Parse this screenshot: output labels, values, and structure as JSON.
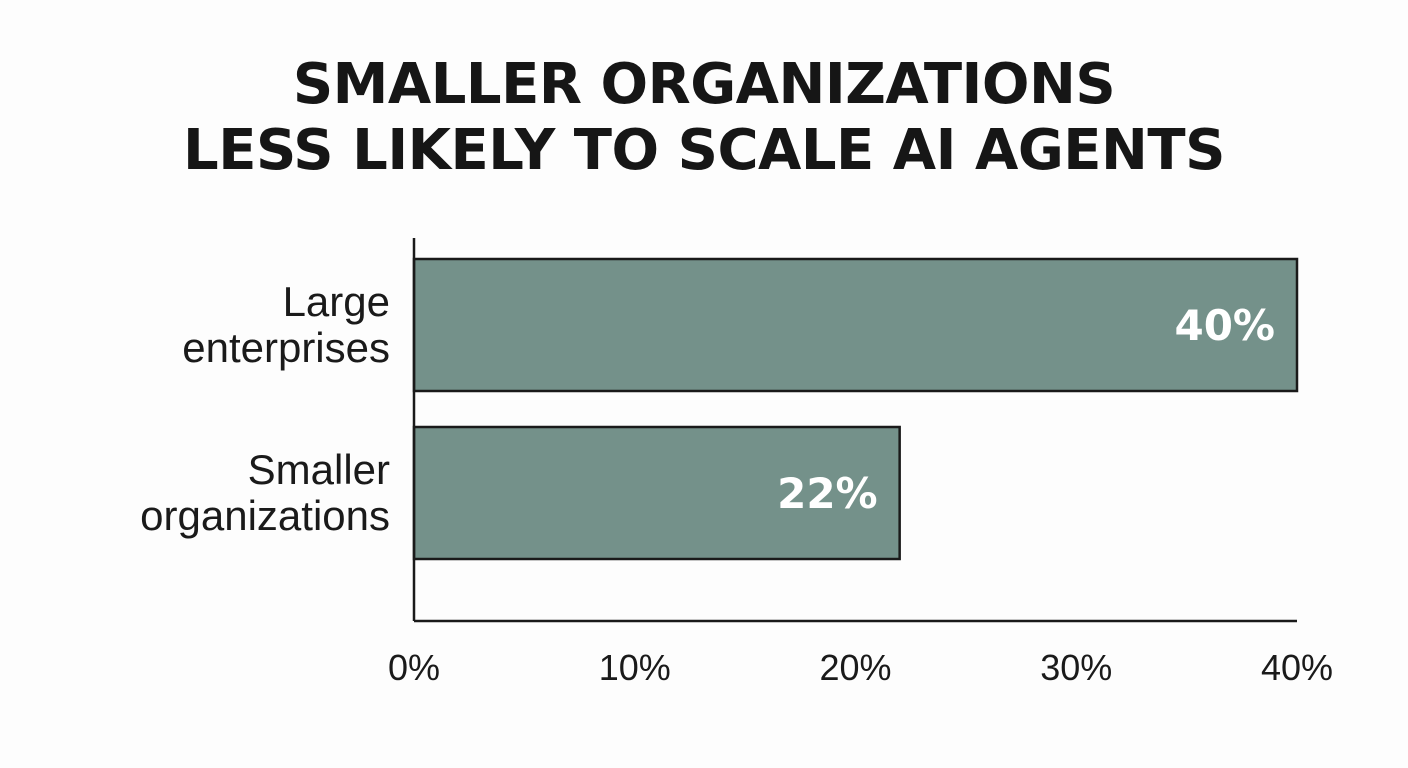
{
  "chart_data": {
    "type": "bar",
    "orientation": "horizontal",
    "title_lines": [
      "SMALLER ORGANIZATIONS",
      "LESS LIKELY TO SCALE AI AGENTS"
    ],
    "categories": [
      {
        "lines": [
          "Large",
          "enterprises"
        ]
      },
      {
        "lines": [
          "Smaller",
          "organizations"
        ]
      }
    ],
    "values": [
      40,
      22
    ],
    "data_labels": [
      "40%",
      "22%"
    ],
    "xlim": [
      0,
      40
    ],
    "xticks": [
      0,
      10,
      20,
      30,
      40
    ],
    "xtick_labels": [
      "0%",
      "10%",
      "20%",
      "30%",
      "40%"
    ],
    "xlabel": "",
    "ylabel": "",
    "grid": false,
    "legend": "none",
    "bar_color": "#74918a",
    "bar_edge_color": "#1a1a1a",
    "axis_color": "#1a1a1a"
  }
}
